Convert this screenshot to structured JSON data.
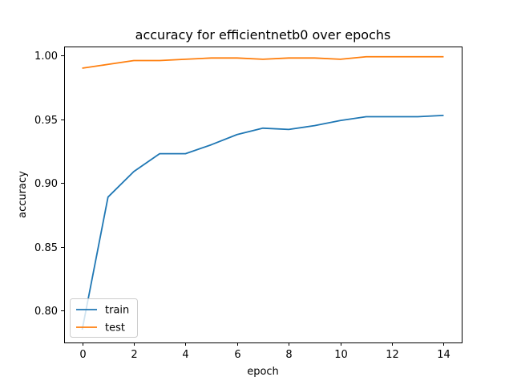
{
  "chart_data": {
    "type": "line",
    "title": "accuracy for efficientnetb0 over epochs",
    "xlabel": "epoch",
    "ylabel": "accuracy",
    "xlim": [
      -0.7,
      14.7
    ],
    "ylim": [
      0.775,
      1.007
    ],
    "x_ticks": [
      0,
      2,
      4,
      6,
      8,
      10,
      12,
      14
    ],
    "y_ticks": [
      0.8,
      0.85,
      0.9,
      0.95,
      1.0
    ],
    "y_tick_labels": [
      "0.80",
      "0.85",
      "0.90",
      "0.95",
      "1.00"
    ],
    "x": [
      0,
      1,
      2,
      3,
      4,
      5,
      6,
      7,
      8,
      9,
      10,
      11,
      12,
      13,
      14
    ],
    "series": [
      {
        "name": "train",
        "color": "#1f77b4",
        "values": [
          0.785,
          0.889,
          0.909,
          0.923,
          0.923,
          0.93,
          0.938,
          0.943,
          0.942,
          0.945,
          0.949,
          0.952,
          0.952,
          0.952,
          0.953
        ]
      },
      {
        "name": "test",
        "color": "#ff7f0e",
        "values": [
          0.99,
          0.993,
          0.996,
          0.996,
          0.997,
          0.998,
          0.998,
          0.997,
          0.998,
          0.998,
          0.997,
          0.999,
          0.999,
          0.999,
          0.999
        ]
      }
    ],
    "legend_position": "lower-left",
    "grid": false
  }
}
